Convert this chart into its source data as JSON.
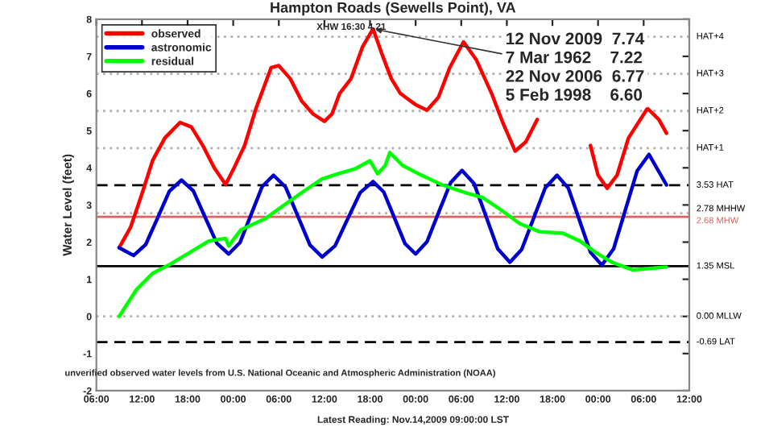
{
  "chart_data": {
    "type": "line",
    "title": "Hampton Roads (Sewells Point), VA",
    "ylabel": "Water Level (feet)",
    "xlim": [
      "2009-11-11T06:00",
      "2009-11-14T12:00"
    ],
    "xticks": [
      {
        "value": "2009-11-11T06:00",
        "label": "06:00"
      },
      {
        "value": "2009-11-11T12:00",
        "label": "12:00"
      },
      {
        "value": "2009-11-11T18:00",
        "label": "18:00"
      },
      {
        "value": "2009-11-12T00:00",
        "label": "00:00"
      },
      {
        "value": "2009-11-12T06:00",
        "label": "06:00"
      },
      {
        "value": "2009-11-12T12:00",
        "label": "12:00"
      },
      {
        "value": "2009-11-12T18:00",
        "label": "18:00"
      },
      {
        "value": "2009-11-13T00:00",
        "label": "00:00"
      },
      {
        "value": "2009-11-13T06:00",
        "label": "06:00"
      },
      {
        "value": "2009-11-13T12:00",
        "label": "12:00"
      },
      {
        "value": "2009-11-13T18:00",
        "label": "18:00"
      },
      {
        "value": "2009-11-14T00:00",
        "label": "00:00"
      },
      {
        "value": "2009-11-14T06:00",
        "label": "06:00"
      },
      {
        "value": "2009-11-14T12:00",
        "label": "12:00"
      }
    ],
    "ylim": [
      -2,
      8
    ],
    "yticks": [
      -2,
      -1,
      0,
      1,
      2,
      3,
      4,
      5,
      6,
      7,
      8
    ],
    "legend": "top left",
    "grid": false,
    "series": [
      {
        "name": "observed",
        "color": "#ff0000",
        "x": [
          "2009-11-11T09:00",
          "2009-11-11T10:30",
          "2009-11-11T12:00",
          "2009-11-11T13:24",
          "2009-11-11T15:00",
          "2009-11-11T17:00",
          "2009-11-11T18:30",
          "2009-11-11T20:00",
          "2009-11-11T21:30",
          "2009-11-11T23:00",
          "2009-11-12T00:00",
          "2009-11-12T01:30",
          "2009-11-12T03:00",
          "2009-11-12T05:00",
          "2009-11-12T06:00",
          "2009-11-12T07:30",
          "2009-11-12T09:00",
          "2009-11-12T10:30",
          "2009-11-12T12:00",
          "2009-11-12T13:00",
          "2009-11-12T14:00",
          "2009-11-12T15:30",
          "2009-11-12T17:00",
          "2009-11-12T18:24",
          "2009-11-12T19:30",
          "2009-11-12T20:48",
          "2009-11-12T22:00",
          "2009-11-13T00:00",
          "2009-11-13T01:30",
          "2009-11-13T03:00",
          "2009-11-13T04:30",
          "2009-11-13T06:18",
          "2009-11-13T08:00",
          "2009-11-13T10:00",
          "2009-11-13T11:30",
          "2009-11-13T13:06",
          "2009-11-13T14:30",
          "2009-11-13T16:00",
          "2009-11-13T19:00",
          "2009-11-13T23:00",
          "2009-11-14T00:00",
          "2009-11-14T01:12",
          "2009-11-14T02:30",
          "2009-11-14T04:00",
          "2009-11-14T06:30",
          "2009-11-14T08:00",
          "2009-11-14T09:00"
        ],
        "values": [
          1.85,
          2.4,
          3.3,
          4.2,
          4.8,
          5.22,
          5.1,
          4.6,
          4.0,
          3.55,
          3.95,
          4.6,
          5.6,
          6.7,
          6.75,
          6.4,
          5.8,
          5.45,
          5.25,
          5.45,
          6.0,
          6.4,
          7.25,
          7.74,
          7.1,
          6.4,
          6.0,
          5.7,
          5.55,
          5.9,
          6.7,
          7.39,
          6.9,
          6.0,
          5.2,
          4.45,
          4.7,
          5.3,
          null,
          4.6,
          3.8,
          3.45,
          3.8,
          4.8,
          5.6,
          5.3,
          4.93
        ]
      },
      {
        "name": "astronomic",
        "color": "#0000cc",
        "x": [
          "2009-11-11T09:00",
          "2009-11-11T10:54",
          "2009-11-11T12:30",
          "2009-11-11T14:03",
          "2009-11-11T15:36",
          "2009-11-11T17:12",
          "2009-11-11T18:45",
          "2009-11-11T20:18",
          "2009-11-11T21:51",
          "2009-11-11T23:24",
          "2009-11-12T00:54",
          "2009-11-12T02:21",
          "2009-11-12T03:48",
          "2009-11-12T05:18",
          "2009-11-12T06:54",
          "2009-11-12T08:30",
          "2009-11-12T10:06",
          "2009-11-12T11:42",
          "2009-11-12T13:24",
          "2009-11-12T15:03",
          "2009-11-12T16:42",
          "2009-11-12T18:24",
          "2009-11-12T19:48",
          "2009-11-12T21:12",
          "2009-11-12T22:36",
          "2009-11-13T00:00",
          "2009-11-13T01:30",
          "2009-11-13T03:03",
          "2009-11-13T04:36",
          "2009-11-13T06:06",
          "2009-11-13T07:42",
          "2009-11-13T09:15",
          "2009-11-13T10:48",
          "2009-11-13T12:24",
          "2009-11-13T13:57",
          "2009-11-13T15:30",
          "2009-11-13T17:03",
          "2009-11-13T18:36",
          "2009-11-13T20:06",
          "2009-11-13T21:33",
          "2009-11-13T23:00",
          "2009-11-14T00:30",
          "2009-11-14T02:03",
          "2009-11-14T03:36",
          "2009-11-14T05:09",
          "2009-11-14T06:42",
          "2009-11-14T09:00"
        ],
        "values": [
          1.85,
          1.64,
          1.94,
          2.65,
          3.37,
          3.67,
          3.38,
          2.67,
          1.97,
          1.68,
          1.99,
          2.74,
          3.49,
          3.8,
          3.48,
          2.7,
          1.92,
          1.6,
          1.9,
          2.62,
          3.33,
          3.63,
          3.35,
          2.66,
          1.96,
          1.68,
          2.01,
          2.81,
          3.6,
          3.93,
          3.57,
          2.7,
          1.82,
          1.46,
          1.8,
          2.63,
          3.46,
          3.8,
          3.45,
          2.59,
          1.73,
          1.38,
          1.82,
          2.87,
          3.92,
          4.36,
          3.54
        ]
      },
      {
        "name": "residual",
        "color": "#00ff00",
        "x": [
          "2009-11-11T09:00",
          "2009-11-11T11:18",
          "2009-11-11T13:24",
          "2009-11-11T15:30",
          "2009-11-11T18:18",
          "2009-11-11T20:48",
          "2009-11-11T23:00",
          "2009-11-11T23:24",
          "2009-11-12T01:00",
          "2009-11-12T04:12",
          "2009-11-12T07:24",
          "2009-11-12T09:30",
          "2009-11-12T11:42",
          "2009-11-12T13:48",
          "2009-11-12T16:00",
          "2009-11-12T18:00",
          "2009-11-12T19:00",
          "2009-11-12T20:00",
          "2009-11-12T20:36",
          "2009-11-12T22:18",
          "2009-11-13T00:24",
          "2009-11-13T03:30",
          "2009-11-13T06:42",
          "2009-11-13T08:48",
          "2009-11-13T11:00",
          "2009-11-13T13:42",
          "2009-11-13T16:18",
          "2009-11-13T19:24",
          "2009-11-13T21:36",
          "2009-11-13T23:42",
          "2009-11-14T01:48",
          "2009-11-14T04:36",
          "2009-11-14T06:42",
          "2009-11-14T09:00"
        ],
        "values": [
          0.0,
          0.73,
          1.16,
          1.38,
          1.72,
          2.03,
          2.1,
          1.9,
          2.33,
          2.63,
          3.1,
          3.4,
          3.7,
          3.84,
          3.97,
          4.19,
          3.84,
          4.06,
          4.41,
          4.06,
          3.84,
          3.54,
          3.32,
          3.2,
          2.9,
          2.5,
          2.28,
          2.24,
          2.03,
          1.72,
          1.46,
          1.25,
          1.29,
          1.33
        ]
      }
    ],
    "ref_lines": [
      {
        "axis": "y",
        "value": 7.53,
        "label": "HAT+4",
        "color": "#b0b0b0",
        "line_style": "dotted"
      },
      {
        "axis": "y",
        "value": 6.53,
        "label": "HAT+3",
        "color": "#b0b0b0",
        "line_style": "dotted"
      },
      {
        "axis": "y",
        "value": 5.53,
        "label": "HAT+2",
        "color": "#b0b0b0",
        "line_style": "dotted"
      },
      {
        "axis": "y",
        "value": 4.53,
        "label": "HAT+1",
        "color": "#b0b0b0",
        "line_style": "dotted"
      },
      {
        "axis": "y",
        "value": 3.53,
        "label": "3.53 HAT",
        "color": "#000000",
        "line_style": "dashed"
      },
      {
        "axis": "y",
        "value": 2.78,
        "label": "2.78 MHHW",
        "color": "#b0b0b0",
        "line_style": "dotted"
      },
      {
        "axis": "y",
        "value": 2.68,
        "label": "2.68 MHW",
        "color": "#e06060",
        "line_style": "solid"
      },
      {
        "axis": "y",
        "value": 1.35,
        "label": "1.35 MSL",
        "color": "#000000",
        "line_style": "solid"
      },
      {
        "axis": "y",
        "value": 0.0,
        "label": "0.00 MLLW",
        "color": "#b0b0b0",
        "line_style": "dotted"
      },
      {
        "axis": "y",
        "value": -0.69,
        "label": "-0.69 LAT",
        "color": "#000000",
        "line_style": "dashed"
      }
    ],
    "annotations": [
      "XHW 16:30 4.21",
      {
        "text": "12 Nov 2009  7.74\n7 Mar 1962    7.22\n22 Nov 2006  6.77\n5 Feb 1998    6.60",
        "x": "2009-11-12T18:24",
        "y": 7.74
      },
      "unverified observed water levels from U.S. National Oceanic and Atmospheric Administration (NOAA)",
      "Latest Reading: Nov.14,2009 09:00:00 LST"
    ]
  }
}
